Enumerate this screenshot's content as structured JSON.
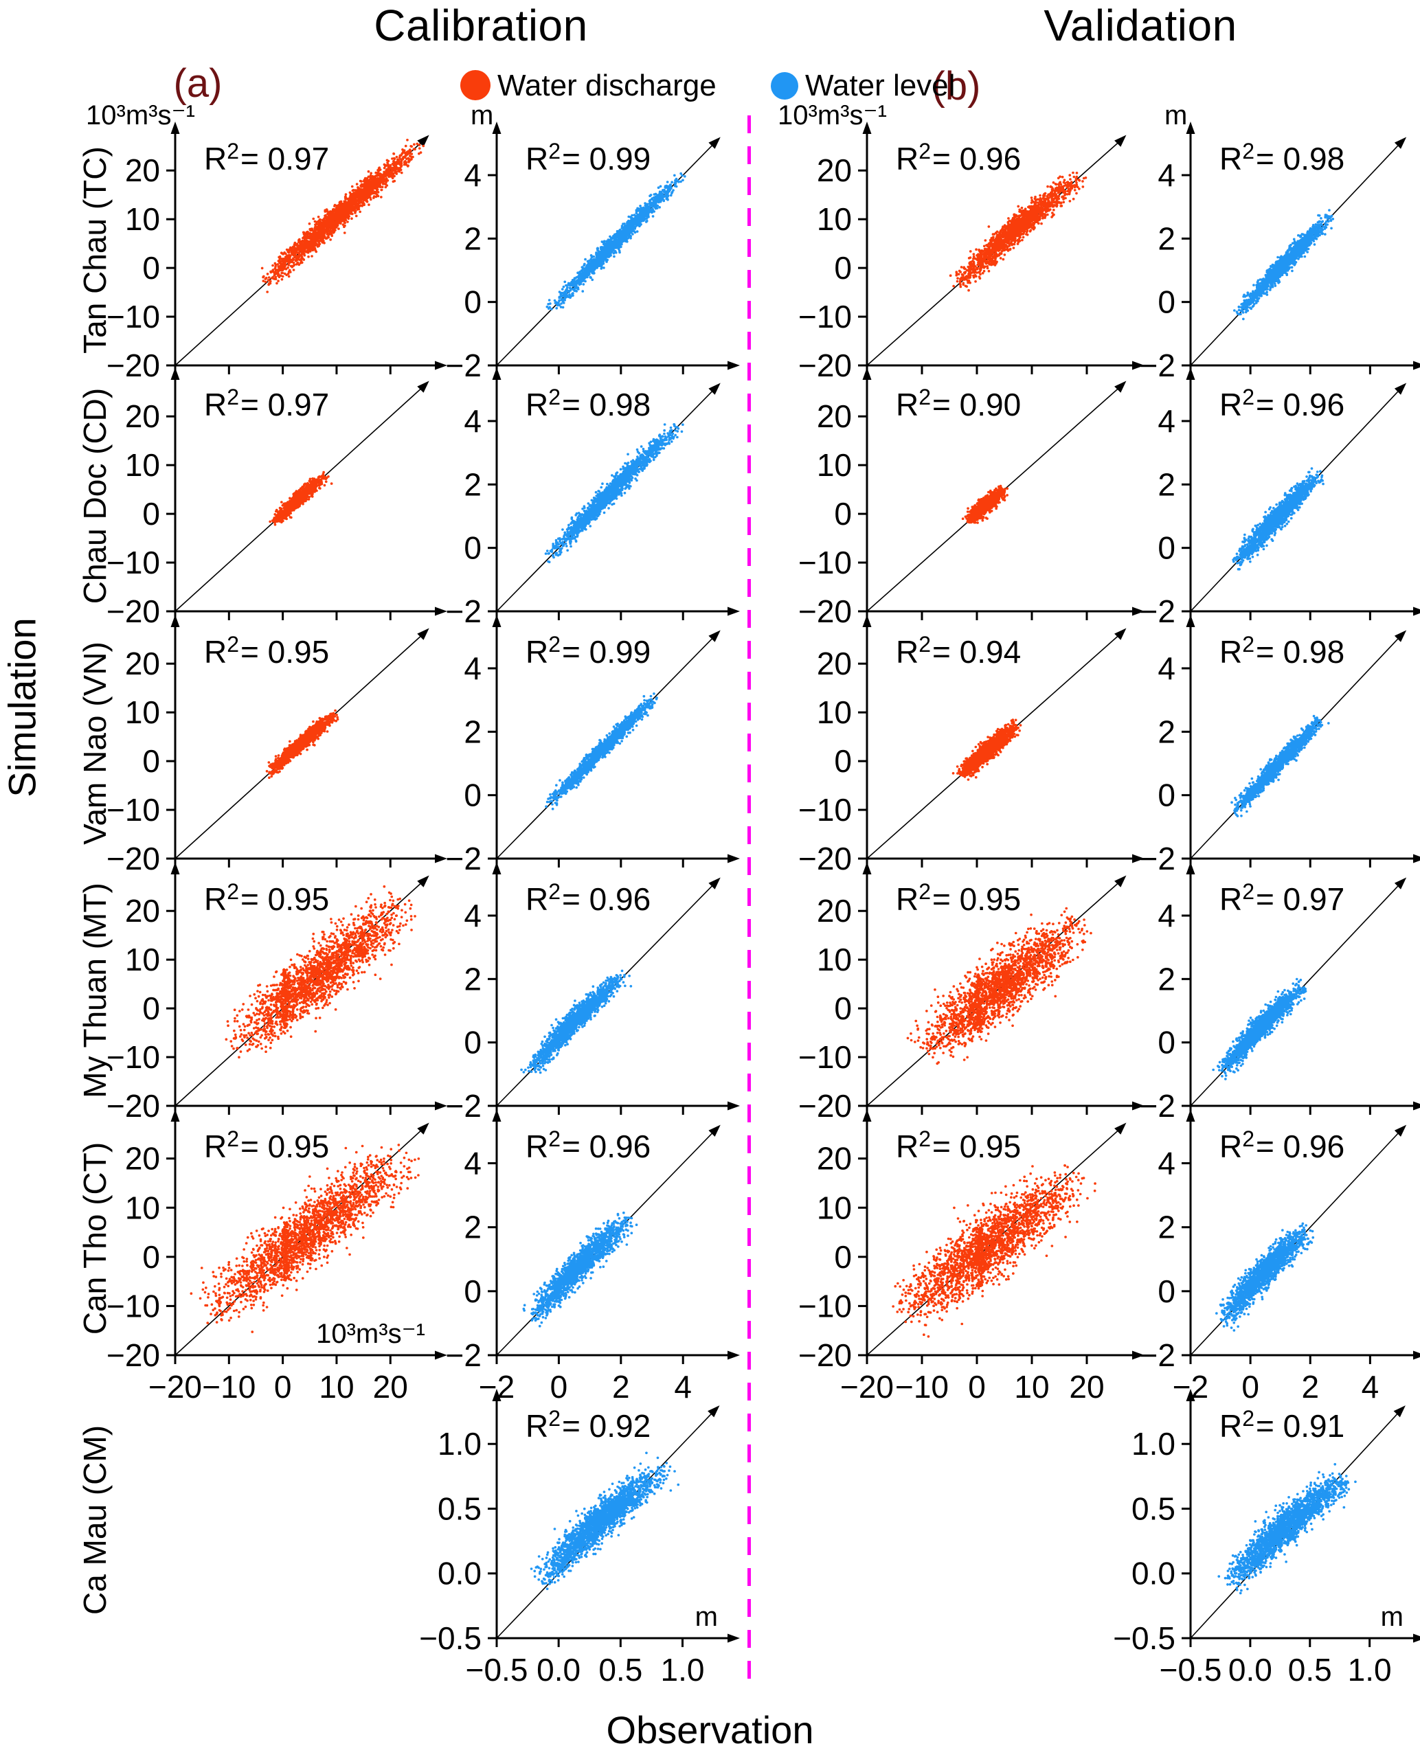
{
  "header": {
    "calibration": "Calibration",
    "validation": "Validation",
    "panel_a": "(a)",
    "panel_b": "(b)",
    "legend": [
      {
        "label": "Water discharge",
        "color": "#f93d0b"
      },
      {
        "label": "Water level",
        "color": "#2196f3"
      }
    ]
  },
  "axis_labels": {
    "y": "Simulation",
    "x": "Observation"
  },
  "stations": [
    "Tan Chau (TC)",
    "Chau Doc (CD)",
    "Vam Nao (VN)",
    "My Thuan (MT)",
    "Can Tho (CT)",
    "Ca Mau (CM)"
  ],
  "colors": {
    "series": {
      "Water discharge": "#f93d0b",
      "Water level": "#2196f3"
    },
    "divider": "#ff00f0",
    "panel_letter": "#6d1214",
    "axis": "#000000",
    "background": "#ffffff"
  },
  "axes": {
    "discharge": {
      "min": -20,
      "max": 27.5,
      "ticks": [
        -20,
        -10,
        0,
        10,
        20
      ],
      "tick_labels": [
        "−20",
        "−10",
        "0",
        "10",
        "20"
      ],
      "diag_end": 26.3,
      "unit": "10³m³s⁻¹"
    },
    "level": {
      "min": -2,
      "max": 5.3,
      "ticks": [
        -2,
        0,
        2,
        4
      ],
      "tick_labels": [
        "−2",
        "0",
        "2",
        "4"
      ],
      "diag_end": 5.05,
      "unit": "m"
    },
    "level_cm": {
      "min": -0.5,
      "max": 1.33,
      "ticks": [
        -0.5,
        0,
        0.5,
        1
      ],
      "tick_labels": [
        "−0.5",
        "0.0",
        "0.5",
        "1.0"
      ],
      "diag_end": 1.26,
      "unit": "m"
    }
  },
  "chart_data": [
    {
      "type": "scatter",
      "row": 0,
      "col": 0,
      "panel": "a",
      "station": "Tan Chau (TC)",
      "quantity": "Water discharge",
      "r2": "0.97",
      "axis": "discharge",
      "x_labels": false,
      "unit_top": "10³m³s⁻¹",
      "unit_inside": null,
      "cloud": {
        "lo": -4,
        "hi": 25.5,
        "spread": 0.9,
        "bow": 0.3,
        "tilt": 0,
        "n": 2200
      }
    },
    {
      "type": "scatter",
      "row": 0,
      "col": 1,
      "panel": "a",
      "station": "Tan Chau (TC)",
      "quantity": "Water level",
      "r2": "0.99",
      "axis": "level",
      "x_labels": false,
      "unit_top": "m",
      "unit_inside": null,
      "cloud": {
        "lo": -0.35,
        "hi": 4.05,
        "spread": 0.1,
        "bow": 0.05,
        "tilt": 0,
        "n": 1600
      }
    },
    {
      "type": "scatter",
      "row": 0,
      "col": 2,
      "panel": "b",
      "station": "Tan Chau (TC)",
      "quantity": "Water discharge",
      "r2": "0.96",
      "axis": "discharge",
      "x_labels": false,
      "unit_top": "10³m³s⁻¹",
      "unit_inside": null,
      "cloud": {
        "lo": -4,
        "hi": 19,
        "spread": 1.0,
        "bow": 0.6,
        "tilt": 0,
        "n": 1800
      }
    },
    {
      "type": "scatter",
      "row": 0,
      "col": 3,
      "panel": "b",
      "station": "Tan Chau (TC)",
      "quantity": "Water level",
      "r2": "0.98",
      "axis": "level",
      "x_labels": false,
      "unit_top": "m",
      "unit_inside": null,
      "cloud": {
        "lo": -0.45,
        "hi": 2.75,
        "spread": 0.11,
        "bow": 0.05,
        "tilt": 0,
        "n": 1500
      }
    },
    {
      "type": "scatter",
      "row": 1,
      "col": 0,
      "panel": "a",
      "station": "Chau Doc (CD)",
      "quantity": "Water discharge",
      "r2": "0.97",
      "axis": "discharge",
      "x_labels": false,
      "unit_top": null,
      "unit_inside": null,
      "cloud": {
        "lo": -2.2,
        "hi": 8.2,
        "spread": 0.55,
        "bow": 0.15,
        "tilt": 0,
        "n": 1000
      }
    },
    {
      "type": "scatter",
      "row": 1,
      "col": 1,
      "panel": "a",
      "station": "Chau Doc (CD)",
      "quantity": "Water level",
      "r2": "0.98",
      "axis": "level",
      "x_labels": false,
      "unit_top": null,
      "unit_inside": null,
      "cloud": {
        "lo": -0.45,
        "hi": 3.9,
        "spread": 0.12,
        "bow": 0.06,
        "tilt": 0,
        "n": 1600
      }
    },
    {
      "type": "scatter",
      "row": 1,
      "col": 2,
      "panel": "b",
      "station": "Chau Doc (CD)",
      "quantity": "Water discharge",
      "r2": "0.90",
      "axis": "discharge",
      "x_labels": false,
      "unit_top": null,
      "unit_inside": null,
      "cloud": {
        "lo": -2.2,
        "hi": 5.4,
        "spread": 0.6,
        "bow": 0.15,
        "tilt": 0,
        "n": 1000
      }
    },
    {
      "type": "scatter",
      "row": 1,
      "col": 3,
      "panel": "b",
      "station": "Chau Doc (CD)",
      "quantity": "Water level",
      "r2": "0.96",
      "axis": "level",
      "x_labels": false,
      "unit_top": null,
      "unit_inside": null,
      "cloud": {
        "lo": -0.55,
        "hi": 2.45,
        "spread": 0.13,
        "bow": 0.05,
        "tilt": 0,
        "n": 1500
      }
    },
    {
      "type": "scatter",
      "row": 2,
      "col": 0,
      "panel": "a",
      "station": "Vam Nao (VN)",
      "quantity": "Water discharge",
      "r2": "0.95",
      "axis": "discharge",
      "x_labels": false,
      "unit_top": null,
      "unit_inside": null,
      "cloud": {
        "lo": -3,
        "hi": 10,
        "spread": 0.55,
        "bow": 0.1,
        "tilt": 0,
        "n": 1300
      }
    },
    {
      "type": "scatter",
      "row": 2,
      "col": 1,
      "panel": "a",
      "station": "Vam Nao (VN)",
      "quantity": "Water level",
      "r2": "0.99",
      "axis": "level",
      "x_labels": false,
      "unit_top": null,
      "unit_inside": null,
      "cloud": {
        "lo": -0.4,
        "hi": 3.2,
        "spread": 0.09,
        "bow": 0.03,
        "tilt": 0,
        "n": 1600
      }
    },
    {
      "type": "scatter",
      "row": 2,
      "col": 2,
      "panel": "b",
      "station": "Vam Nao (VN)",
      "quantity": "Water discharge",
      "r2": "0.94",
      "axis": "discharge",
      "x_labels": false,
      "unit_top": null,
      "unit_inside": null,
      "cloud": {
        "lo": -3.6,
        "hi": 7.8,
        "spread": 0.7,
        "bow": 0.1,
        "tilt": 0,
        "n": 1400
      }
    },
    {
      "type": "scatter",
      "row": 2,
      "col": 3,
      "panel": "b",
      "station": "Vam Nao (VN)",
      "quantity": "Water level",
      "r2": "0.98",
      "axis": "level",
      "x_labels": false,
      "unit_top": null,
      "unit_inside": null,
      "cloud": {
        "lo": -0.6,
        "hi": 2.45,
        "spread": 0.1,
        "bow": 0.03,
        "tilt": 0,
        "n": 1600
      }
    },
    {
      "type": "scatter",
      "row": 3,
      "col": 0,
      "panel": "a",
      "station": "My Thuan (MT)",
      "quantity": "Water discharge",
      "r2": "0.95",
      "axis": "discharge",
      "x_labels": false,
      "unit_top": null,
      "unit_inside": null,
      "cloud": {
        "lo": -9.5,
        "hi": 23,
        "spread": 2.3,
        "bow": 0,
        "tilt": 1.5,
        "n": 2000,
        "streak": {
          "x": 0.4,
          "ylo": -4,
          "yhi": 8,
          "n": 130
        }
      }
    },
    {
      "type": "scatter",
      "row": 3,
      "col": 1,
      "panel": "a",
      "station": "My Thuan (MT)",
      "quantity": "Water level",
      "r2": "0.96",
      "axis": "level",
      "x_labels": false,
      "unit_top": null,
      "unit_inside": null,
      "cloud": {
        "lo": -1.05,
        "hi": 2.2,
        "spread": 0.13,
        "bow": 0.12,
        "tilt": 0,
        "n": 1700
      }
    },
    {
      "type": "scatter",
      "row": 3,
      "col": 2,
      "panel": "b",
      "station": "My Thuan (MT)",
      "quantity": "Water discharge",
      "r2": "0.95",
      "axis": "discharge",
      "x_labels": false,
      "unit_top": null,
      "unit_inside": null,
      "cloud": {
        "lo": -10,
        "hi": 19,
        "spread": 2.3,
        "bow": 0,
        "tilt": 1.5,
        "n": 2000,
        "streak": {
          "x": 0.4,
          "ylo": -5,
          "yhi": 7,
          "n": 120
        }
      }
    },
    {
      "type": "scatter",
      "row": 3,
      "col": 3,
      "panel": "b",
      "station": "My Thuan (MT)",
      "quantity": "Water level",
      "r2": "0.97",
      "axis": "level",
      "x_labels": false,
      "unit_top": null,
      "unit_inside": null,
      "cloud": {
        "lo": -1.05,
        "hi": 1.85,
        "spread": 0.13,
        "bow": 0.1,
        "tilt": 0,
        "n": 1700
      }
    },
    {
      "type": "scatter",
      "row": 4,
      "col": 0,
      "panel": "a",
      "station": "Can Tho (CT)",
      "quantity": "Water discharge",
      "r2": "0.95",
      "axis": "discharge",
      "x_labels": true,
      "unit_top": null,
      "unit_inside": "10³m³s⁻¹",
      "cloud": {
        "lo": -13.5,
        "hi": 22.5,
        "spread": 2.5,
        "bow": 0,
        "tilt": 3,
        "n": 2000,
        "streak": {
          "x": 0.6,
          "ylo": -5,
          "yhi": 7,
          "n": 130
        }
      }
    },
    {
      "type": "scatter",
      "row": 4,
      "col": 1,
      "panel": "a",
      "station": "Can Tho (CT)",
      "quantity": "Water level",
      "r2": "0.96",
      "axis": "level",
      "x_labels": true,
      "unit_top": null,
      "unit_inside": null,
      "cloud": {
        "lo": -0.9,
        "hi": 2.35,
        "spread": 0.17,
        "bow": 0.1,
        "tilt": 0,
        "n": 1700
      }
    },
    {
      "type": "scatter",
      "row": 4,
      "col": 2,
      "panel": "b",
      "station": "Can Tho (CT)",
      "quantity": "Water discharge",
      "r2": "0.95",
      "axis": "discharge",
      "x_labels": true,
      "unit_top": null,
      "unit_inside": null,
      "cloud": {
        "lo": -14,
        "hi": 18,
        "spread": 2.5,
        "bow": 0,
        "tilt": 3,
        "n": 2000,
        "streak": {
          "x": 0.6,
          "ylo": -6,
          "yhi": 6,
          "n": 120
        }
      }
    },
    {
      "type": "scatter",
      "row": 4,
      "col": 3,
      "panel": "b",
      "station": "Can Tho (CT)",
      "quantity": "Water level",
      "r2": "0.96",
      "axis": "level",
      "x_labels": true,
      "unit_top": null,
      "unit_inside": null,
      "cloud": {
        "lo": -1.0,
        "hi": 2.0,
        "spread": 0.17,
        "bow": 0.1,
        "tilt": 0,
        "n": 1700
      }
    },
    {
      "type": "scatter",
      "row": 5,
      "col": 1,
      "panel": "a",
      "station": "Ca Mau (CM)",
      "quantity": "Water level",
      "r2": "0.92",
      "axis": "level_cm",
      "x_labels": true,
      "unit_top": null,
      "unit_inside": "m",
      "cloud": {
        "lo": -0.12,
        "hi": 0.86,
        "spread": 0.055,
        "bow": 0.05,
        "tilt": 0.1,
        "n": 2000
      }
    },
    {
      "type": "scatter",
      "row": 5,
      "col": 3,
      "panel": "b",
      "station": "Ca Mau (CM)",
      "quantity": "Water level",
      "r2": "0.91",
      "axis": "level_cm",
      "x_labels": true,
      "unit_top": null,
      "unit_inside": "m",
      "cloud": {
        "lo": -0.16,
        "hi": 0.8,
        "spread": 0.055,
        "bow": 0.05,
        "tilt": 0.12,
        "n": 2000
      }
    }
  ]
}
